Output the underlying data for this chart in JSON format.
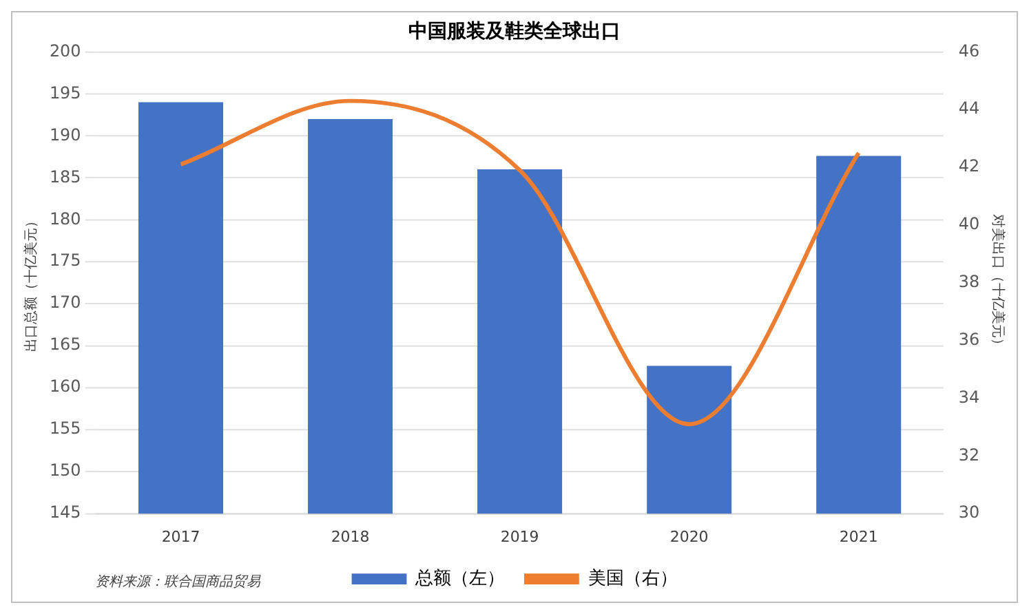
{
  "chart_data": {
    "type": "bar",
    "title": "中国服装及鞋类全球出口",
    "ylabel": "出口总额（十亿美元）",
    "y2label": "对美出口（十亿美元）",
    "categories": [
      "2017",
      "2018",
      "2019",
      "2020",
      "2021"
    ],
    "series": [
      {
        "name": "总额（左）",
        "color": "#4472c4",
        "values": [
          194,
          192,
          186,
          162.6,
          187.6
        ]
      },
      {
        "name": "美国（右）",
        "type": "line",
        "axis": "y2",
        "color": "#ed7d31",
        "values": [
          42.1,
          44.3,
          41.9,
          33.1,
          42.5
        ]
      }
    ],
    "ylim": [
      145,
      200
    ],
    "yticks": [
      145,
      150,
      155,
      160,
      165,
      170,
      175,
      180,
      185,
      190,
      195,
      200
    ],
    "y2lim": [
      30,
      46
    ],
    "y2ticks": [
      30,
      32,
      34,
      36,
      38,
      40,
      42,
      44,
      46
    ],
    "grid": "y",
    "legend": "bottom",
    "marker": "none",
    "annotations": [
      "资料来源：联合国商品贸易"
    ]
  }
}
